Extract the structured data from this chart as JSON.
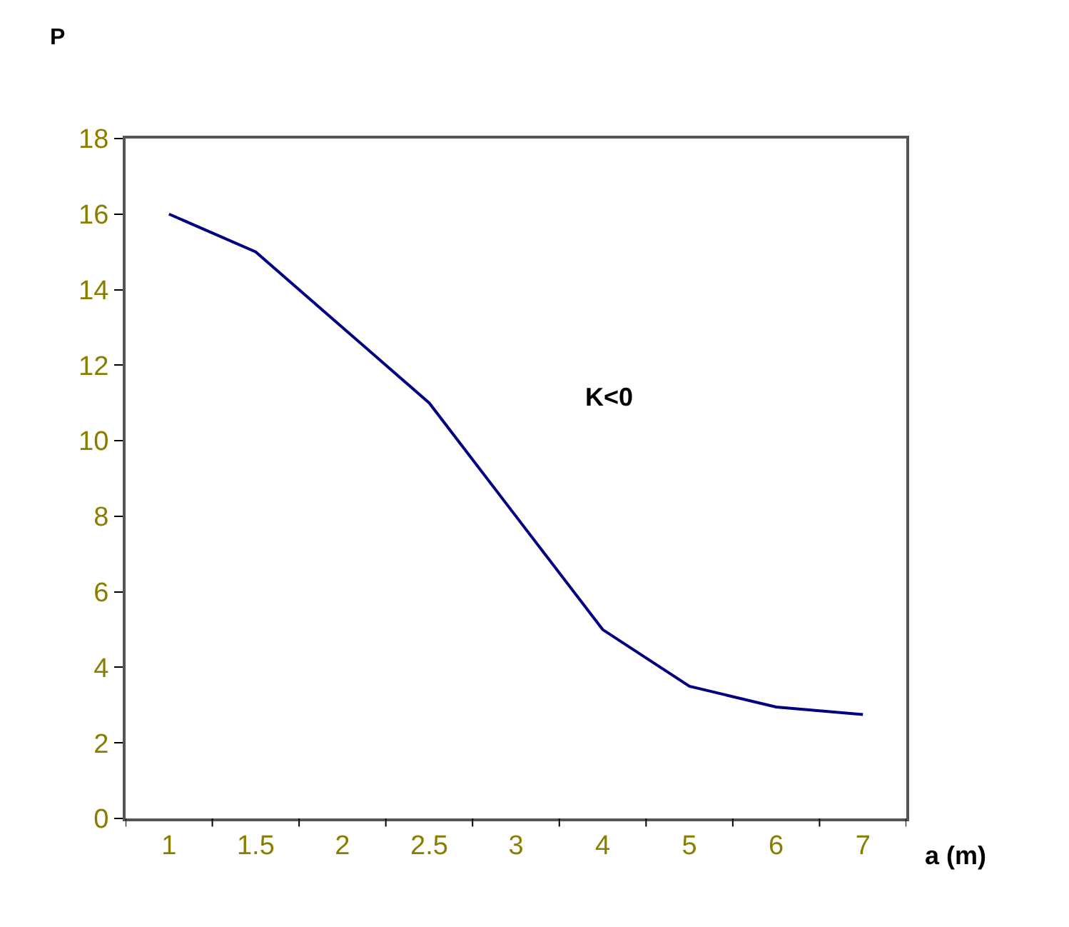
{
  "chart_data": {
    "type": "line",
    "xlabel": "a (m)",
    "ylabel": "P",
    "annotations": [
      "K<0"
    ],
    "categories": [
      "1",
      "1.5",
      "2",
      "2.5",
      "3",
      "4",
      "5",
      "6",
      "7"
    ],
    "series": [
      {
        "color": "#000080",
        "values": [
          16,
          15,
          13,
          11,
          8,
          5,
          3.5,
          2.95,
          2.75
        ]
      }
    ],
    "ylim": [
      0,
      18
    ],
    "yticks": [
      0,
      2,
      4,
      6,
      8,
      10,
      12,
      14,
      16,
      18
    ],
    "marker": "none",
    "line_style": "solid"
  }
}
